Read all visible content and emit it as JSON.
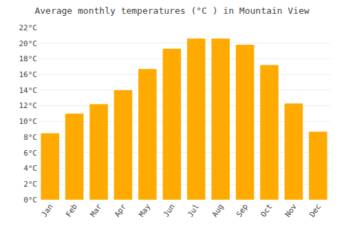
{
  "chart_data": {
    "type": "bar",
    "title": "Average monthly temperatures (°C ) in Mountain View",
    "categories": [
      "Jan",
      "Feb",
      "Mar",
      "Apr",
      "May",
      "Jun",
      "Jul",
      "Aug",
      "Sep",
      "Oct",
      "Nov",
      "Dec"
    ],
    "values": [
      8.5,
      11.0,
      12.2,
      14.0,
      16.7,
      19.3,
      20.6,
      20.6,
      19.8,
      17.2,
      12.3,
      8.7
    ],
    "color": "#FFAA00",
    "ylim": [
      0,
      22
    ],
    "yticks": [
      {
        "value": 0,
        "label": "0°C"
      },
      {
        "value": 2,
        "label": "2°C"
      },
      {
        "value": 4,
        "label": "4°C"
      },
      {
        "value": 6,
        "label": "6°C"
      },
      {
        "value": 8,
        "label": "8°C"
      },
      {
        "value": 10,
        "label": "10°C"
      },
      {
        "value": 12,
        "label": "12°C"
      },
      {
        "value": 14,
        "label": "14°C"
      },
      {
        "value": 16,
        "label": "16°C"
      },
      {
        "value": 18,
        "label": "18°C"
      },
      {
        "value": 20,
        "label": "20°C"
      },
      {
        "value": 22,
        "label": "22°C"
      }
    ],
    "grid": true
  }
}
